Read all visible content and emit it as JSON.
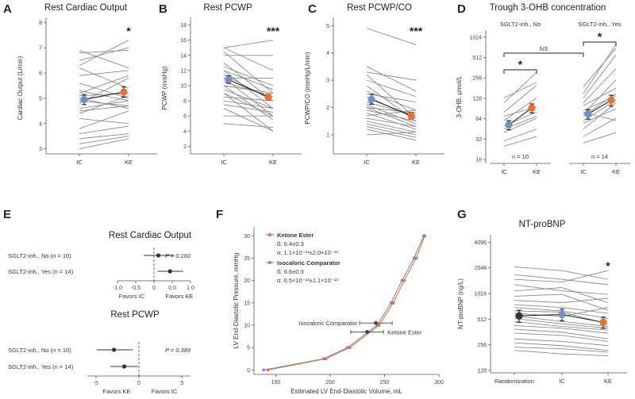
{
  "colors": {
    "ic": "#6f8fcf",
    "ke": "#e8712e",
    "line": "#8a8a8a",
    "forest": "#1f2f6b",
    "ref": "#e03c2c",
    "rand": "#333333"
  },
  "panels": [
    {
      "id": "A",
      "letter": "A",
      "title": "Rest Cardiac Output"
    },
    {
      "id": "B",
      "letter": "B",
      "title": "Rest PCWP"
    },
    {
      "id": "C",
      "letter": "C",
      "title": "Rest PCWP/CO"
    },
    {
      "id": "D",
      "letter": "D",
      "title": "Trough 3-OHB concentration"
    },
    {
      "id": "E",
      "letter": "E",
      "title": ""
    },
    {
      "id": "F",
      "letter": "F",
      "title": ""
    },
    {
      "id": "G",
      "letter": "G",
      "title": "NT-proBNP"
    }
  ],
  "chart_data": [
    {
      "id": "A",
      "type": "line",
      "title": "Rest Cardiac Output",
      "ylabel": "Cardiac Output (L/min)",
      "ylim": [
        2.8,
        8.2
      ],
      "yticks": [
        "3",
        "4",
        "5",
        "6",
        "7",
        "8"
      ],
      "categories": [
        "IC",
        "KE"
      ],
      "significance": "*",
      "individuals": [
        [
          6.9,
          6.2
        ],
        [
          6.8,
          6.9
        ],
        [
          6.5,
          7.0
        ],
        [
          6.3,
          7.3
        ],
        [
          6.2,
          5.4
        ],
        [
          5.9,
          6.1
        ],
        [
          5.6,
          5.0
        ],
        [
          5.3,
          4.9
        ],
        [
          5.2,
          5.9
        ],
        [
          5.1,
          5.2
        ],
        [
          5.0,
          4.6
        ],
        [
          4.9,
          4.7
        ],
        [
          4.8,
          5.8
        ],
        [
          4.6,
          4.9
        ],
        [
          4.5,
          4.7
        ],
        [
          4.4,
          5.1
        ],
        [
          4.2,
          4.0
        ],
        [
          3.8,
          4.5
        ],
        [
          3.6,
          3.9
        ],
        [
          3.4,
          3.6
        ],
        [
          3.2,
          3.5
        ],
        [
          3.0,
          3.4
        ]
      ],
      "means": [
        {
          "name": "IC",
          "value": 4.95,
          "err": 0.2
        },
        {
          "name": "KE",
          "value": 5.25,
          "err": 0.2
        }
      ]
    },
    {
      "id": "B",
      "type": "line",
      "title": "Rest PCWP",
      "ylabel": "PCWP (mmHg)",
      "ylim": [
        1,
        19
      ],
      "yticks": [
        "2",
        "4",
        "6",
        "8",
        "10",
        "12",
        "14",
        "16",
        "18"
      ],
      "categories": [
        "IC",
        "KE"
      ],
      "significance": "***",
      "individuals": [
        [
          15,
          16
        ],
        [
          15,
          12
        ],
        [
          14.5,
          9
        ],
        [
          14,
          14
        ],
        [
          13,
          8
        ],
        [
          12.5,
          10
        ],
        [
          12,
          9.5
        ],
        [
          12,
          7
        ],
        [
          11.5,
          8
        ],
        [
          11,
          6
        ],
        [
          11,
          11
        ],
        [
          10.5,
          8.5
        ],
        [
          10,
          5.5
        ],
        [
          10,
          9
        ],
        [
          9.5,
          7
        ],
        [
          9,
          6
        ],
        [
          9,
          4
        ],
        [
          8.5,
          8
        ],
        [
          8,
          7
        ],
        [
          7.5,
          6.5
        ],
        [
          7,
          4
        ],
        [
          6,
          6
        ],
        [
          5,
          4.5
        ]
      ],
      "means": [
        {
          "name": "IC",
          "value": 10.8,
          "err": 0.5
        },
        {
          "name": "KE",
          "value": 8.5,
          "err": 0.4
        }
      ]
    },
    {
      "id": "C",
      "type": "line",
      "title": "Rest PCWP/CO",
      "ylabel": "PCWP/CO (mmHg/L/min)",
      "ylim": [
        0.3,
        5.3
      ],
      "yticks": [
        "1",
        "2",
        "3",
        "4",
        "5"
      ],
      "categories": [
        "IC",
        "KE"
      ],
      "significance": "***",
      "individuals": [
        [
          4.9,
          4.3
        ],
        [
          3.5,
          2.6
        ],
        [
          3.3,
          3.0
        ],
        [
          3.2,
          1.6
        ],
        [
          3.0,
          2.4
        ],
        [
          2.8,
          1.5
        ],
        [
          2.6,
          1.9
        ],
        [
          2.5,
          2.2
        ],
        [
          2.4,
          1.6
        ],
        [
          2.2,
          1.7
        ],
        [
          2.1,
          1.4
        ],
        [
          2.0,
          1.8
        ],
        [
          2.0,
          1.3
        ],
        [
          1.9,
          1.5
        ],
        [
          1.8,
          1.2
        ],
        [
          1.7,
          1.9
        ],
        [
          1.6,
          1.3
        ],
        [
          1.5,
          1.1
        ],
        [
          1.4,
          1.0
        ],
        [
          1.3,
          0.9
        ],
        [
          1.2,
          0.8
        ],
        [
          1.0,
          1.1
        ]
      ],
      "means": [
        {
          "name": "IC",
          "value": 2.3,
          "err": 0.18
        },
        {
          "name": "KE",
          "value": 1.7,
          "err": 0.12
        }
      ]
    },
    {
      "id": "D",
      "type": "line",
      "title": "Trough 3-OHB concentration",
      "ylabel": "3-OHB, µmol/L",
      "scale": "log2",
      "ylim": [
        14,
        1300
      ],
      "yticks": [
        "16",
        "32",
        "64",
        "128",
        "256",
        "512",
        "1024"
      ],
      "groups": [
        {
          "label": "SGLT2-inh., No",
          "n": "n = 10",
          "categories": [
            "IC",
            "KE"
          ],
          "significance": "*",
          "individuals": [
            [
              130,
              220
            ],
            [
              110,
              310
            ],
            [
              80,
              200
            ],
            [
              70,
              95
            ],
            [
              60,
              130
            ],
            [
              50,
              80
            ],
            [
              45,
              70
            ],
            [
              40,
              65
            ],
            [
              30,
              45
            ],
            [
              25,
              35
            ]
          ],
          "means": [
            {
              "name": "IC",
              "value": 52,
              "err": 8
            },
            {
              "name": "KE",
              "value": 92,
              "err": 14
            }
          ]
        },
        {
          "label": "SGLT2-inh., Yes",
          "n": "n = 14",
          "categories": [
            "IC",
            "KE"
          ],
          "significance": "*",
          "individuals": [
            [
              190,
              700
            ],
            [
              150,
              800
            ],
            [
              130,
              560
            ],
            [
              110,
              350
            ],
            [
              100,
              180
            ],
            [
              85,
              140
            ],
            [
              80,
              60
            ],
            [
              75,
              240
            ],
            [
              70,
              150
            ],
            [
              60,
              120
            ],
            [
              55,
              90
            ],
            [
              45,
              110
            ],
            [
              35,
              65
            ],
            [
              28,
              40
            ]
          ],
          "means": [
            {
              "name": "IC",
              "value": 75,
              "err": 12
            },
            {
              "name": "KE",
              "value": 120,
              "err": 22
            }
          ]
        }
      ],
      "between_group": "NS"
    },
    {
      "id": "E",
      "type": "scatter",
      "subplots": [
        {
          "title": "Rest Cardiac Output",
          "xlim": [
            -1,
            1
          ],
          "xticks": [
            "-1.0",
            "-0.5",
            "0",
            "0.5",
            "1.0"
          ],
          "left_label": "Favors IC",
          "right_label": "Favors KE",
          "p": "P = 0.160",
          "rows": [
            {
              "label": "SGLT2-inh., No (n = 10)",
              "est": 0.12,
              "lo": -0.28,
              "hi": 0.55
            },
            {
              "label": "SGLT2-inh., Yes (n = 14)",
              "est": 0.44,
              "lo": 0.1,
              "hi": 0.8
            }
          ]
        },
        {
          "title": "Rest PCWP",
          "xlim": [
            -6,
            6
          ],
          "xticks": [
            "-5",
            "0",
            "5"
          ],
          "left_label": "Favors KE",
          "right_label": "Favors IC",
          "p": "P = 0.389",
          "rows": [
            {
              "label": "SGLT2-inh., No (n = 10)",
              "est": -2.9,
              "lo": -4.9,
              "hi": -0.7
            },
            {
              "label": "SGLT2-inh., Yes (n = 14)",
              "est": -1.7,
              "lo": -3.3,
              "hi": -0.1
            }
          ]
        }
      ]
    },
    {
      "id": "F",
      "type": "line",
      "xlabel": "Estimated LV End-Diastolic Volume, mL",
      "ylabel": "LV End-Diastolic Pressure, mmHg",
      "xlim": [
        130,
        300
      ],
      "ylim": [
        -1,
        32
      ],
      "xticks": [
        "150",
        "200",
        "250",
        "300"
      ],
      "yticks": [
        "0",
        "5",
        "10",
        "15",
        "20",
        "25",
        "30"
      ],
      "series": [
        {
          "name": "Ketone Ester",
          "beta": "ß: 6.4±0.3",
          "alpha": "α: 1.1×10⁻¹³±2.0×10⁻¹³",
          "x": [
            143,
            196,
            218,
            245,
            258,
            268,
            279,
            287
          ],
          "y": [
            0,
            2.5,
            5,
            10,
            15,
            20,
            25,
            30
          ]
        },
        {
          "name": "Isocaloric Comparator",
          "beta": "ß: 6.6±0.3",
          "alpha": "α: 0.5×10⁻¹³±1.1×10⁻¹³",
          "x": [
            139,
            194,
            216,
            243,
            256,
            266,
            277,
            286
          ],
          "y": [
            0,
            2.5,
            5,
            10,
            15,
            20,
            25,
            30
          ]
        }
      ],
      "annotations": [
        {
          "text": "Isocaloric Comparator",
          "x": 242,
          "y": 10.5,
          "xerr": 15
        },
        {
          "text": "Ketone Ester",
          "x": 234,
          "y": 8.5,
          "xerr": 15
        }
      ]
    },
    {
      "id": "G",
      "type": "line",
      "title": "NT-proBNP",
      "ylabel": "NT-proBNP (ng/L)",
      "scale": "log2",
      "ylim": [
        120,
        5000
      ],
      "yticks": [
        "128",
        "256",
        "512",
        "1024",
        "2048",
        "4096"
      ],
      "categories": [
        "Randomization",
        "IC",
        "KE"
      ],
      "significance": "*",
      "individuals": [
        [
          2100,
          1900,
          1500
        ],
        [
          1700,
          1500,
          1300
        ],
        [
          1500,
          1400,
          1900
        ],
        [
          1300,
          1100,
          1000
        ],
        [
          1100,
          1200,
          800
        ],
        [
          950,
          1000,
          650
        ],
        [
          850,
          800,
          900
        ],
        [
          760,
          700,
          600
        ],
        [
          700,
          640,
          520
        ],
        [
          640,
          620,
          450
        ],
        [
          600,
          550,
          700
        ],
        [
          560,
          480,
          420
        ],
        [
          520,
          450,
          400
        ],
        [
          480,
          420,
          380
        ],
        [
          430,
          400,
          350
        ],
        [
          390,
          360,
          300
        ],
        [
          350,
          330,
          280
        ],
        [
          300,
          280,
          250
        ],
        [
          270,
          250,
          220
        ],
        [
          240,
          230,
          210
        ],
        [
          220,
          200,
          190
        ]
      ],
      "means": [
        {
          "name": "Randomization",
          "value": 560,
          "err": 90
        },
        {
          "name": "IC",
          "value": 580,
          "err": 90
        },
        {
          "name": "KE",
          "value": 470,
          "err": 70
        }
      ]
    }
  ]
}
